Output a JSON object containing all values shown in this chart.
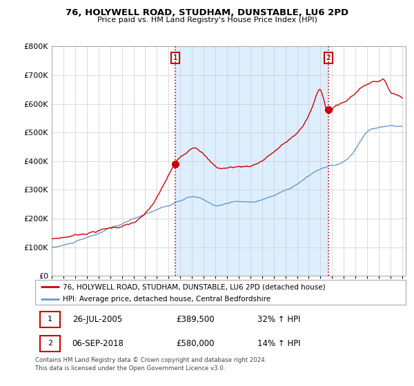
{
  "title": "76, HOLYWELL ROAD, STUDHAM, DUNSTABLE, LU6 2PD",
  "subtitle": "Price paid vs. HM Land Registry's House Price Index (HPI)",
  "legend_line1": "76, HOLYWELL ROAD, STUDHAM, DUNSTABLE, LU6 2PD (detached house)",
  "legend_line2": "HPI: Average price, detached house, Central Bedfordshire",
  "annotation1_label": "1",
  "annotation1_date": "26-JUL-2005",
  "annotation1_price": "£389,500",
  "annotation1_hpi": "32% ↑ HPI",
  "annotation2_label": "2",
  "annotation2_date": "06-SEP-2018",
  "annotation2_price": "£580,000",
  "annotation2_hpi": "14% ↑ HPI",
  "footnote1": "Contains HM Land Registry data © Crown copyright and database right 2024.",
  "footnote2": "This data is licensed under the Open Government Licence v3.0.",
  "price_color": "#cc0000",
  "hpi_color": "#6699cc",
  "fill_color": "#ddeeff",
  "annotation_vline_color": "#cc0000",
  "ylim_min": 0,
  "ylim_max": 800000,
  "year_start": 1995,
  "year_end": 2025,
  "sale1_year": 2005.57,
  "sale1_price": 389500,
  "sale2_year": 2018.68,
  "sale2_price": 580000
}
